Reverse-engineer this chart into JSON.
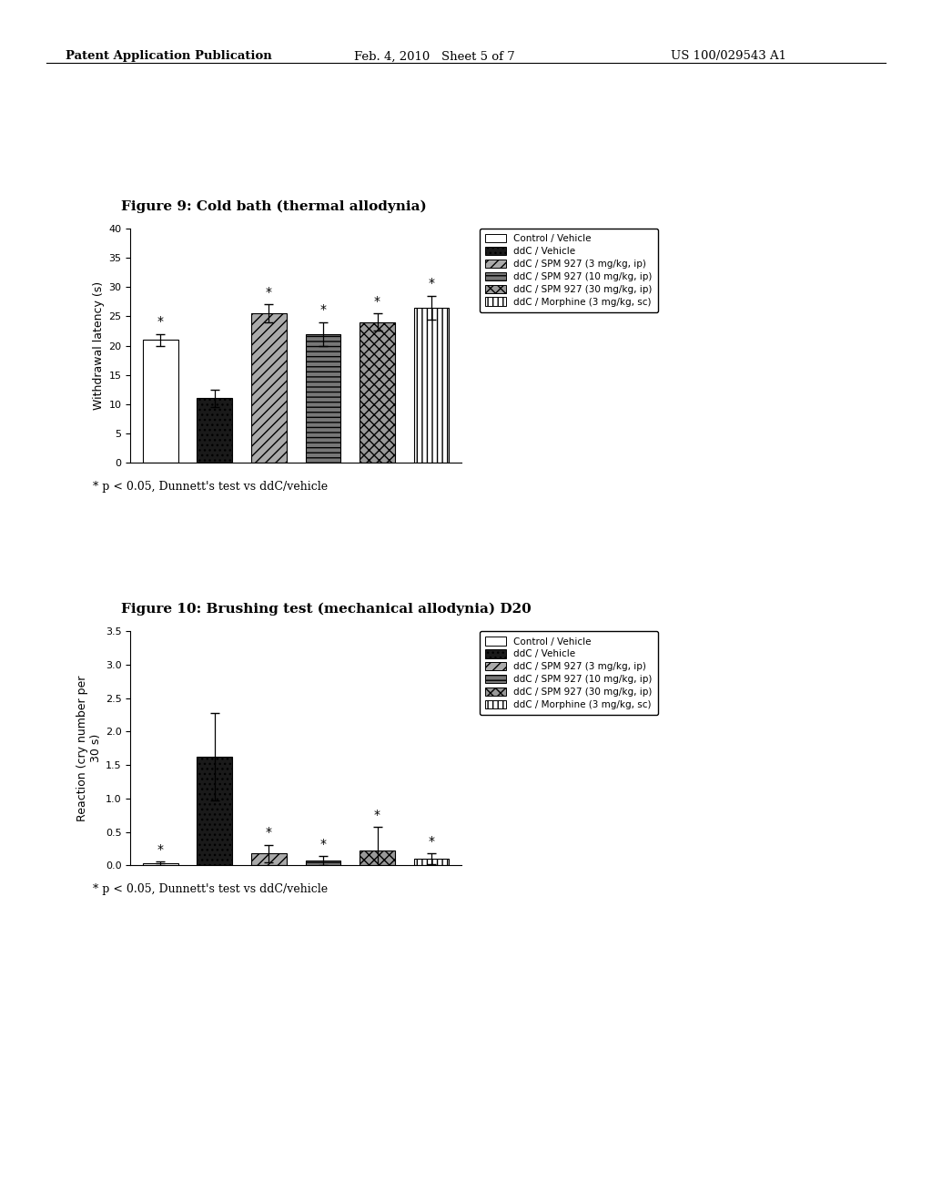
{
  "fig9": {
    "title": "Figure 9: Cold bath (thermal allodynia)",
    "ylabel": "Withdrawal latency (s)",
    "ylim": [
      0,
      40
    ],
    "yticks": [
      0,
      5,
      10,
      15,
      20,
      25,
      30,
      35,
      40
    ],
    "bars": [
      21.0,
      11.0,
      25.5,
      22.0,
      24.0,
      26.5
    ],
    "errors": [
      1.0,
      1.5,
      1.5,
      2.0,
      1.5,
      2.0
    ],
    "star": [
      true,
      false,
      true,
      true,
      true,
      true
    ],
    "note": "* p < 0.05, Dunnett's test vs ddC/vehicle"
  },
  "fig10": {
    "title": "Figure 10: Brushing test (mechanical allodynia) D20",
    "ylabel": "Reaction (cry number per\n30 s)",
    "ylim": [
      0,
      3.5
    ],
    "yticks": [
      0.0,
      0.5,
      1.0,
      1.5,
      2.0,
      2.5,
      3.0,
      3.5
    ],
    "bars": [
      0.03,
      1.62,
      0.18,
      0.07,
      0.22,
      0.1
    ],
    "errors": [
      0.03,
      0.65,
      0.13,
      0.07,
      0.35,
      0.08
    ],
    "star": [
      true,
      false,
      true,
      true,
      true,
      true
    ],
    "note": "* p < 0.05, Dunnett's test vs ddC/vehicle"
  },
  "legend_labels": [
    "Control / Vehicle",
    "ddC / Vehicle",
    "ddC / SPM 927 (3 mg/kg, ip)",
    "ddC / SPM 927 (10 mg/kg, ip)",
    "ddC / SPM 927 (30 mg/kg, ip)",
    "ddC / Morphine (3 mg/kg, sc)"
  ],
  "header_left": "Patent Application Publication",
  "header_center": "Feb. 4, 2010   Sheet 5 of 7",
  "header_right": "US 100/029543 A1",
  "background_color": "#ffffff",
  "bar_width": 0.65
}
